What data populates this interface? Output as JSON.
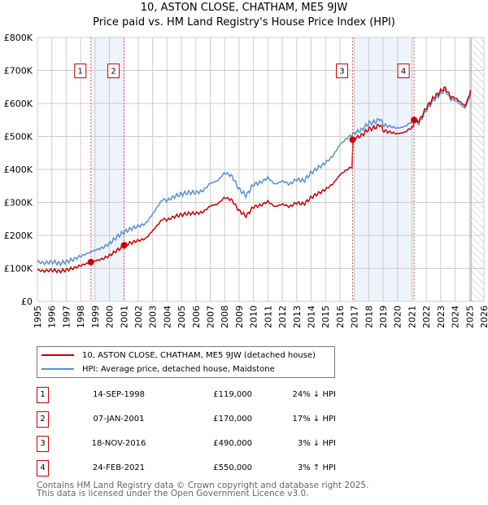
{
  "chart_data": {
    "type": "line",
    "title": "10, ASTON CLOSE, CHATHAM, ME5 9JW",
    "subtitle": "Price paid vs. HM Land Registry's House Price Index (HPI)",
    "xlim": [
      1995,
      2026
    ],
    "ylim": [
      0,
      800000
    ],
    "x_ticks": [
      "1995",
      "1996",
      "1997",
      "1998",
      "1999",
      "2000",
      "2001",
      "2002",
      "2003",
      "2004",
      "2005",
      "2006",
      "2007",
      "2008",
      "2009",
      "2010",
      "2011",
      "2012",
      "2013",
      "2014",
      "2015",
      "2016",
      "2017",
      "2018",
      "2019",
      "2020",
      "2021",
      "2022",
      "2023",
      "2024",
      "2025",
      "2026"
    ],
    "y_ticks": [
      "£0",
      "£100K",
      "£200K",
      "£300K",
      "£400K",
      "£500K",
      "£600K",
      "£700K",
      "£800K"
    ],
    "grid": true,
    "colors": {
      "property": "#cc0000",
      "hpi": "#5b8fd0"
    },
    "hpi_series": {
      "name": "HPI: Average price, detached house, Maidstone",
      "x": [
        1995,
        1995.5,
        1996,
        1996.5,
        1997,
        1997.5,
        1998,
        1998.7,
        1999,
        1999.5,
        2000,
        2000.5,
        2001,
        2001.5,
        2002,
        2002.5,
        2003,
        2003.7,
        2004,
        2004.5,
        2005,
        2005.5,
        2006,
        2006.5,
        2007,
        2007.5,
        2008,
        2008.5,
        2009,
        2009.5,
        2010,
        2010.5,
        2011,
        2011.5,
        2012,
        2012.5,
        2013,
        2013.5,
        2014,
        2014.5,
        2015,
        2015.5,
        2016,
        2016.5,
        2017,
        2017.5,
        2018,
        2018.5,
        2018.8,
        2019,
        2019.5,
        2020,
        2020.5,
        2021,
        2021.5,
        2022,
        2022.5,
        2023,
        2023.3,
        2023.7,
        2024,
        2024.5,
        2024.7,
        2025,
        2025.1
      ],
      "values": [
        120000,
        116000,
        120000,
        115000,
        120000,
        127000,
        137000,
        150000,
        155000,
        162000,
        175000,
        195000,
        210000,
        220000,
        228000,
        235000,
        265000,
        310000,
        305000,
        318000,
        325000,
        330000,
        330000,
        335000,
        358000,
        365000,
        390000,
        380000,
        340000,
        320000,
        355000,
        360000,
        375000,
        355000,
        365000,
        355000,
        370000,
        365000,
        390000,
        405000,
        420000,
        440000,
        475000,
        495000,
        510000,
        520000,
        540000,
        545000,
        555000,
        535000,
        530000,
        525000,
        530000,
        545000,
        540000,
        580000,
        610000,
        630000,
        640000,
        612000,
        610000,
        592000,
        585000,
        620000,
        635000
      ]
    },
    "property_series": {
      "name": "10, ASTON CLOSE, CHATHAM, ME5 9JW (detached house)"
    },
    "sales": [
      {
        "n": "1",
        "date": "14-SEP-1998",
        "x": 1998.71,
        "price": 119000,
        "price_label": "£119,000",
        "hpi": "24% ↓ HPI"
      },
      {
        "n": "2",
        "date": "07-JAN-2001",
        "x": 2001.02,
        "price": 170000,
        "price_label": "£170,000",
        "hpi": "17% ↓ HPI"
      },
      {
        "n": "3",
        "date": "18-NOV-2016",
        "x": 2016.88,
        "price": 490000,
        "price_label": "£490,000",
        "hpi": "3% ↓ HPI"
      },
      {
        "n": "4",
        "date": "24-FEB-2021",
        "x": 2021.15,
        "price": 550000,
        "price_label": "£550,000",
        "hpi": "3% ↑ HPI"
      }
    ],
    "forecast_start": 2025.1
  },
  "legend": {
    "property": "10, ASTON CLOSE, CHATHAM, ME5 9JW (detached house)",
    "hpi": "HPI: Average price, detached house, Maidstone"
  },
  "footer": {
    "line1": "Contains HM Land Registry data © Crown copyright and database right 2025.",
    "line2": "This data is licensed under the Open Government Licence v3.0."
  }
}
